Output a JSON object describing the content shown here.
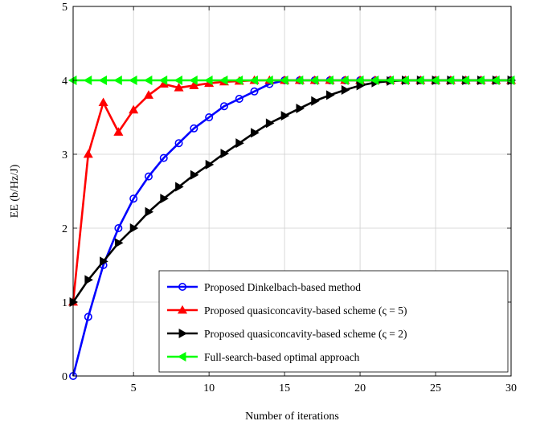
{
  "chart_data": {
    "type": "line",
    "xlabel": "Number of iterations",
    "ylabel": "EE (b/Hz/J)",
    "xlim": [
      1,
      30
    ],
    "ylim": [
      0,
      5
    ],
    "xticks": [
      5,
      10,
      15,
      20,
      25,
      30
    ],
    "yticks": [
      0,
      1,
      2,
      3,
      4,
      5
    ],
    "grid": true,
    "legend_position": "bottom-right",
    "x": [
      1,
      2,
      3,
      4,
      5,
      6,
      7,
      8,
      9,
      10,
      11,
      12,
      13,
      14,
      15,
      16,
      17,
      18,
      19,
      20,
      21,
      22,
      23,
      24,
      25,
      26,
      27,
      28,
      29,
      30
    ],
    "series": [
      {
        "name": "Proposed Dinkelbach-based method",
        "color": "#0000ff",
        "marker": "circle",
        "values": [
          0,
          0.8,
          1.5,
          2.0,
          2.4,
          2.7,
          2.95,
          3.15,
          3.35,
          3.5,
          3.65,
          3.75,
          3.85,
          3.95,
          4.0,
          4.0,
          4.0,
          4.0,
          4.0,
          4.0,
          4.0,
          4.0,
          4.0,
          4.0,
          4.0,
          4.0,
          4.0,
          4.0,
          4.0,
          4.0
        ]
      },
      {
        "name": "Proposed quasiconcavity-based scheme (ς = 5)",
        "color": "#ff0000",
        "marker": "triangle-up",
        "values": [
          1.0,
          3.0,
          3.7,
          3.3,
          3.6,
          3.8,
          3.95,
          3.9,
          3.93,
          3.96,
          3.98,
          3.99,
          4.0,
          4.0,
          4.0,
          4.0,
          4.0,
          4.0,
          4.0,
          4.0,
          4.0,
          4.0,
          4.0,
          4.0,
          4.0,
          4.0,
          4.0,
          4.0,
          4.0,
          4.0
        ]
      },
      {
        "name": "Proposed quasiconcavity-based scheme (ς = 2)",
        "color": "#000000",
        "marker": "triangle-right",
        "values": [
          1.0,
          1.3,
          1.55,
          1.8,
          2.0,
          2.22,
          2.4,
          2.56,
          2.72,
          2.86,
          3.01,
          3.15,
          3.29,
          3.42,
          3.52,
          3.62,
          3.72,
          3.8,
          3.87,
          3.93,
          3.97,
          3.99,
          4.0,
          4.0,
          4.0,
          4.0,
          4.0,
          4.0,
          4.0,
          4.0
        ]
      },
      {
        "name": "Full-search-based optimal approach",
        "color": "#00ff00",
        "marker": "triangle-left",
        "values": [
          4.0,
          4.0,
          4.0,
          4.0,
          4.0,
          4.0,
          4.0,
          4.0,
          4.0,
          4.0,
          4.0,
          4.0,
          4.0,
          4.0,
          4.0,
          4.0,
          4.0,
          4.0,
          4.0,
          4.0,
          4.0,
          4.0,
          4.0,
          4.0,
          4.0,
          4.0,
          4.0,
          4.0,
          4.0,
          4.0
        ]
      }
    ]
  }
}
